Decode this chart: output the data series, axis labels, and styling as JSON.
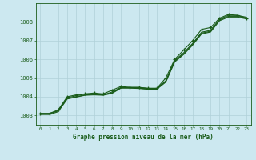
{
  "title": "Graphe pression niveau de la mer (hPa)",
  "background_color": "#cce8f0",
  "grid_color": "#b0d0d8",
  "line_color": "#1a5c1a",
  "xlim": [
    -0.5,
    23.5
  ],
  "ylim": [
    1002.5,
    1009.0
  ],
  "yticks": [
    1003,
    1004,
    1005,
    1006,
    1007,
    1008
  ],
  "xticks": [
    0,
    1,
    2,
    3,
    4,
    5,
    6,
    7,
    8,
    9,
    10,
    11,
    12,
    13,
    14,
    15,
    16,
    17,
    18,
    19,
    20,
    21,
    22,
    23
  ],
  "series_smooth1": [
    1003.1,
    1003.1,
    1003.25,
    1003.95,
    1004.05,
    1004.15,
    1004.15,
    1004.1,
    1004.25,
    1004.5,
    1004.5,
    1004.5,
    1004.45,
    1004.45,
    1004.85,
    1005.95,
    1006.35,
    1006.85,
    1007.45,
    1007.55,
    1008.15,
    1008.35,
    1008.35,
    1008.25
  ],
  "series_smooth2": [
    1003.1,
    1003.1,
    1003.25,
    1003.9,
    1004.0,
    1004.1,
    1004.12,
    1004.1,
    1004.2,
    1004.48,
    1004.48,
    1004.46,
    1004.42,
    1004.42,
    1004.82,
    1005.9,
    1006.3,
    1006.8,
    1007.4,
    1007.5,
    1008.1,
    1008.3,
    1008.3,
    1008.2
  ],
  "series_smooth3": [
    1003.05,
    1003.05,
    1003.2,
    1003.88,
    1003.98,
    1004.08,
    1004.1,
    1004.08,
    1004.18,
    1004.46,
    1004.46,
    1004.44,
    1004.4,
    1004.4,
    1004.78,
    1005.86,
    1006.26,
    1006.76,
    1007.36,
    1007.46,
    1008.06,
    1008.26,
    1008.26,
    1008.16
  ],
  "series_markers": [
    1003.1,
    1003.1,
    1003.3,
    1004.0,
    1004.1,
    1004.15,
    1004.2,
    1004.15,
    1004.35,
    1004.55,
    1004.5,
    1004.5,
    1004.45,
    1004.45,
    1005.0,
    1006.0,
    1006.5,
    1007.0,
    1007.6,
    1007.7,
    1008.2,
    1008.4,
    1008.35,
    1008.2
  ]
}
